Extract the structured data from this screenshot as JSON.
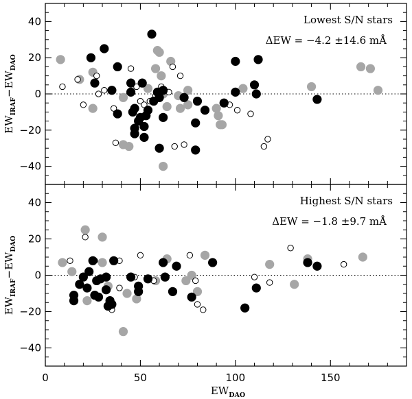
{
  "chart_data": {
    "type": "scatter",
    "xlabel": "EW",
    "xlabel_sub": "DAO",
    "xlim": [
      0,
      190
    ],
    "xticks": [
      0,
      50,
      100,
      150
    ],
    "ylabel_parts": [
      "EW",
      "IRAF",
      "−EW",
      "DAO"
    ],
    "colors": {
      "black": "#000000",
      "gray": "#a6a6a6",
      "open_stroke": "#000000"
    },
    "panels": [
      {
        "name": "lowest",
        "title": "Lowest S/N stars",
        "stat": "ΔEW = −4.2 ±14.6 mÅ",
        "ylim": [
          -50,
          50
        ],
        "yticks": [
          -40,
          -20,
          0,
          20,
          40
        ],
        "series": [
          {
            "name": "black",
            "points": [
              [
                24,
                20
              ],
              [
                31,
                25
              ],
              [
                38,
                15
              ],
              [
                56,
                33
              ],
              [
                26,
                6
              ],
              [
                45,
                6
              ],
              [
                51,
                6
              ],
              [
                35,
                2
              ],
              [
                45,
                1
              ],
              [
                59,
                1
              ],
              [
                62,
                2
              ],
              [
                60,
                -2
              ],
              [
                73,
                -2
              ],
              [
                80,
                -4
              ],
              [
                94,
                -5
              ],
              [
                100,
                1
              ],
              [
                110,
                5
              ],
              [
                100,
                18
              ],
              [
                112,
                19
              ],
              [
                111,
                0
              ],
              [
                143,
                -3
              ],
              [
                38,
                -11
              ],
              [
                47,
                -8
              ],
              [
                46,
                -10
              ],
              [
                54,
                -9
              ],
              [
                50,
                -13
              ],
              [
                53,
                -12
              ],
              [
                62,
                -13
              ],
              [
                49,
                -15
              ],
              [
                52,
                -18
              ],
              [
                47,
                -19
              ],
              [
                47,
                -22
              ],
              [
                52,
                -24
              ],
              [
                60,
                -30
              ],
              [
                79,
                -31
              ],
              [
                79,
                -16
              ],
              [
                84,
                -9
              ],
              [
                57,
                -4
              ]
            ]
          },
          {
            "name": "gray",
            "points": [
              [
                8,
                19
              ],
              [
                18,
                8
              ],
              [
                25,
                12
              ],
              [
                25,
                -8
              ],
              [
                41,
                -2
              ],
              [
                58,
                14
              ],
              [
                59,
                24
              ],
              [
                60,
                23
              ],
              [
                66,
                18
              ],
              [
                61,
                10
              ],
              [
                54,
                3
              ],
              [
                62,
                0
              ],
              [
                64,
                -7
              ],
              [
                70,
                -1
              ],
              [
                71,
                -8
              ],
              [
                75,
                2
              ],
              [
                75,
                -6
              ],
              [
                90,
                -8
              ],
              [
                91,
                -12
              ],
              [
                92,
                -17
              ],
              [
                93,
                -17
              ],
              [
                104,
                3
              ],
              [
                140,
                4
              ],
              [
                166,
                15
              ],
              [
                171,
                14
              ],
              [
                175,
                2
              ],
              [
                44,
                -29
              ],
              [
                41,
                -28
              ],
              [
                62,
                -40
              ]
            ]
          },
          {
            "name": "open",
            "points": [
              [
                9,
                4
              ],
              [
                17,
                8
              ],
              [
                20,
                -6
              ],
              [
                27,
                10
              ],
              [
                28,
                0
              ],
              [
                31,
                2
              ],
              [
                36,
                -8
              ],
              [
                37,
                -27
              ],
              [
                45,
                14
              ],
              [
                48,
                4
              ],
              [
                50,
                -4
              ],
              [
                52,
                -6
              ],
              [
                55,
                -4
              ],
              [
                58,
                -1
              ],
              [
                61,
                4
              ],
              [
                65,
                1
              ],
              [
                67,
                15
              ],
              [
                71,
                10
              ],
              [
                68,
                -29
              ],
              [
                73,
                -28
              ],
              [
                97,
                -6
              ],
              [
                101,
                -9
              ],
              [
                108,
                -11
              ],
              [
                115,
                -29
              ],
              [
                117,
                -25
              ]
            ]
          }
        ]
      },
      {
        "name": "highest",
        "title": "Highest S/N stars",
        "stat": "ΔEW = −1.8 ±9.7 mÅ",
        "ylim": [
          -50,
          50
        ],
        "yticks": [
          -40,
          -20,
          0,
          20,
          40
        ],
        "series": [
          {
            "name": "black",
            "points": [
              [
                25,
                8
              ],
              [
                15,
                -11
              ],
              [
                15,
                -14
              ],
              [
                18,
                -5
              ],
              [
                20,
                -1
              ],
              [
                22,
                -7
              ],
              [
                23,
                2
              ],
              [
                26,
                -11
              ],
              [
                27,
                -3
              ],
              [
                28,
                -12
              ],
              [
                29,
                -2
              ],
              [
                32,
                -1
              ],
              [
                32,
                -8
              ],
              [
                33,
                -17
              ],
              [
                34,
                -14
              ],
              [
                35,
                -16
              ],
              [
                36,
                8
              ],
              [
                45,
                -1
              ],
              [
                49,
                -6
              ],
              [
                49,
                -9
              ],
              [
                54,
                -2
              ],
              [
                62,
                7
              ],
              [
                63,
                -1
              ],
              [
                67,
                -9
              ],
              [
                69,
                5
              ],
              [
                77,
                -12
              ],
              [
                88,
                7
              ],
              [
                105,
                -18
              ],
              [
                111,
                -7
              ],
              [
                138,
                7
              ],
              [
                143,
                5
              ]
            ]
          },
          {
            "name": "gray",
            "points": [
              [
                9,
                7
              ],
              [
                14,
                2
              ],
              [
                21,
                25
              ],
              [
                30,
                21
              ],
              [
                22,
                -14
              ],
              [
                30,
                7
              ],
              [
                33,
                -6
              ],
              [
                43,
                -10
              ],
              [
                48,
                -13
              ],
              [
                58,
                -3
              ],
              [
                64,
                9
              ],
              [
                74,
                -3
              ],
              [
                84,
                11
              ],
              [
                80,
                -9
              ],
              [
                77,
                0
              ],
              [
                118,
                6
              ],
              [
                131,
                -5
              ],
              [
                138,
                9
              ],
              [
                167,
                10
              ],
              [
                41,
                -31
              ]
            ]
          },
          {
            "name": "open",
            "points": [
              [
                13,
                8
              ],
              [
                21,
                21
              ],
              [
                26,
                8
              ],
              [
                39,
                8
              ],
              [
                50,
                11
              ],
              [
                57,
                -3
              ],
              [
                76,
                11
              ],
              [
                79,
                -3
              ],
              [
                80,
                -16
              ],
              [
                83,
                -19
              ],
              [
                110,
                -1
              ],
              [
                118,
                -4
              ],
              [
                129,
                15
              ],
              [
                157,
                6
              ],
              [
                35,
                -19
              ],
              [
                39,
                -7
              ],
              [
                47,
                -1
              ]
            ]
          }
        ]
      }
    ]
  }
}
